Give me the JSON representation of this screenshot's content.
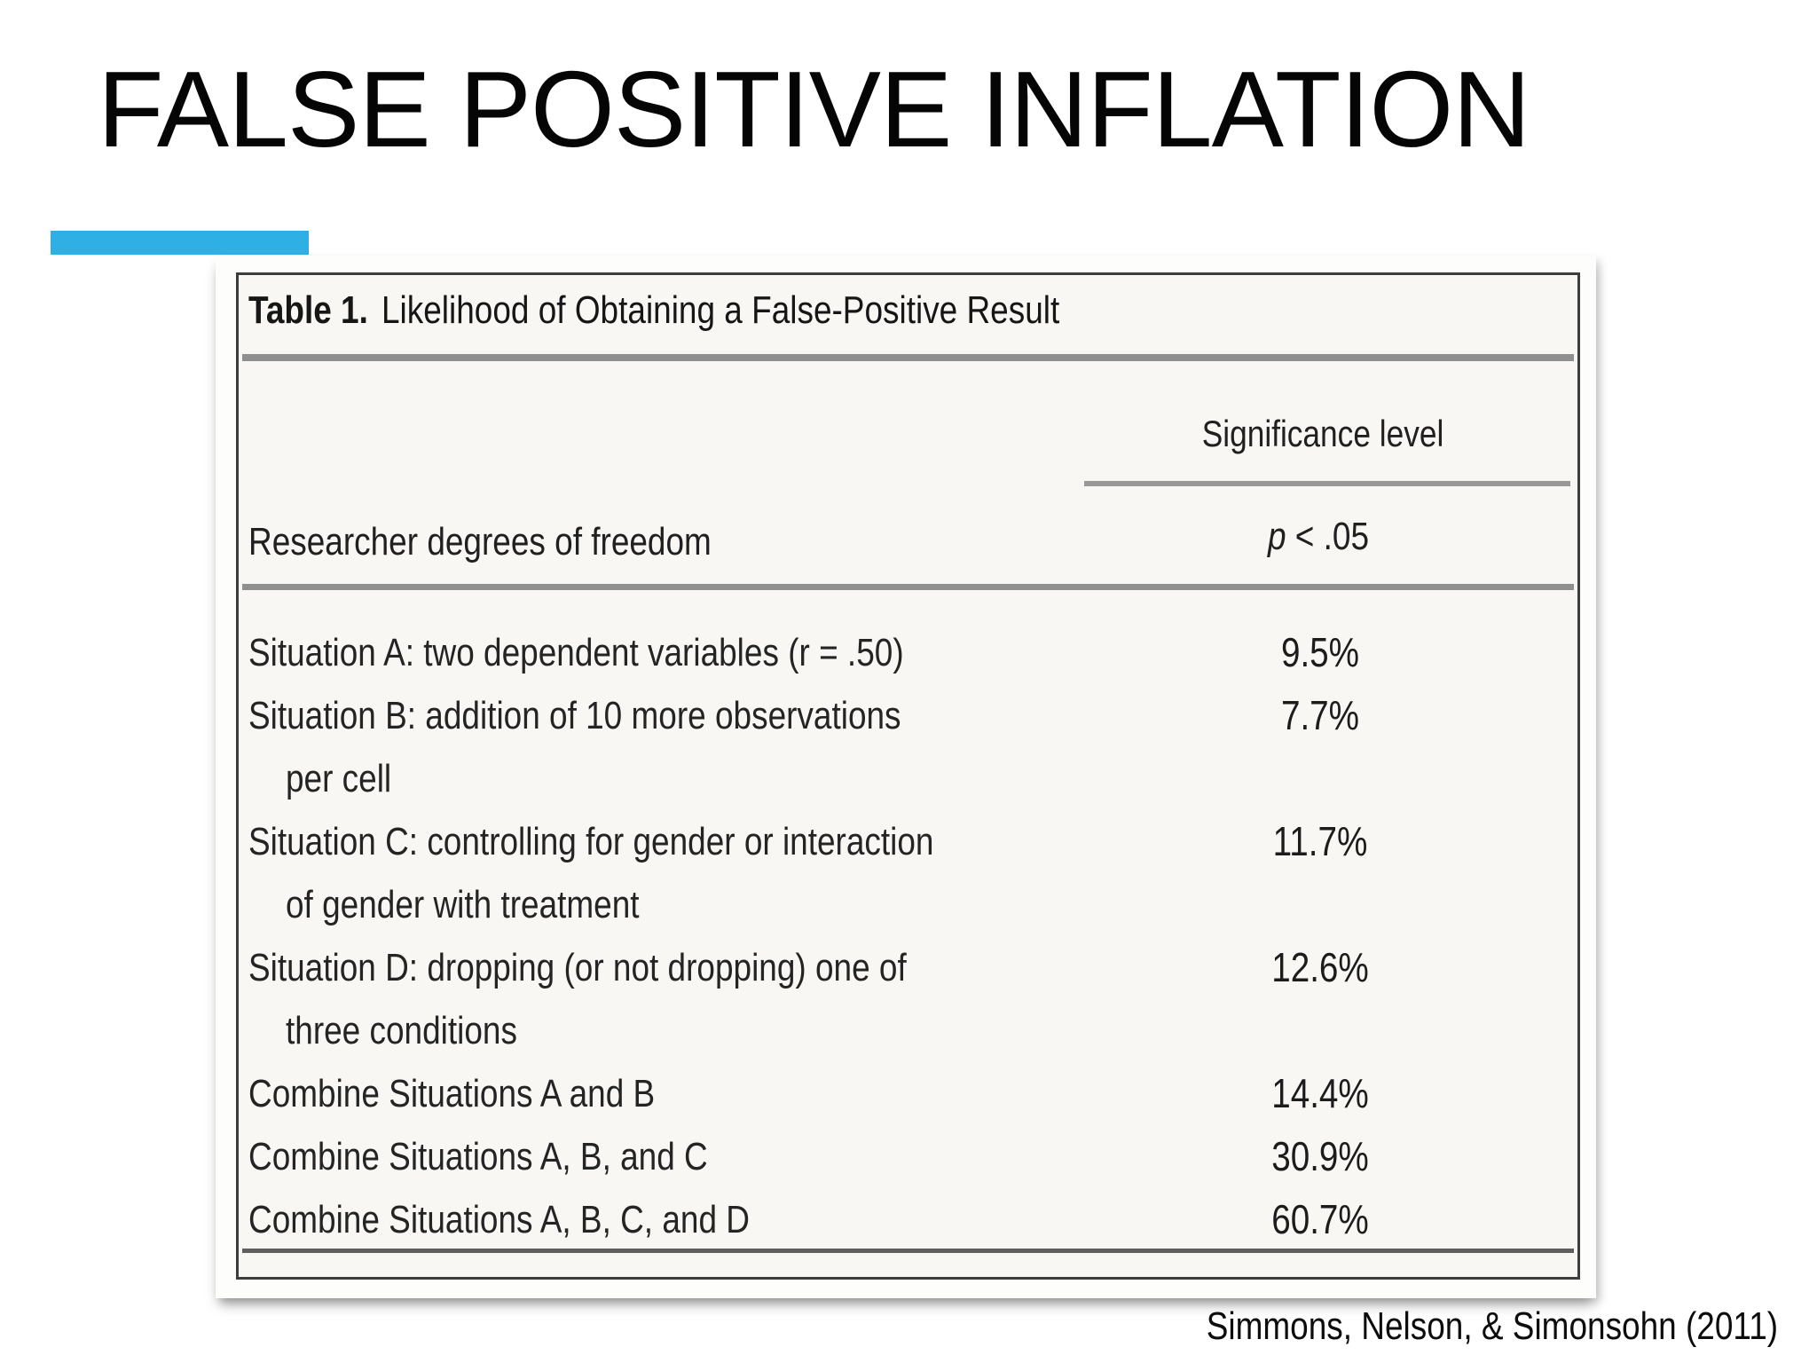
{
  "slide": {
    "title": "FALSE POSITIVE INFLATION",
    "accent_color": "#2FB0E4",
    "citation": "Simmons, Nelson, & Simonsohn (2011)"
  },
  "table": {
    "caption_label": "Table 1.",
    "caption_text": "Likelihood of Obtaining a False-Positive Result",
    "significance_header": "Significance level",
    "p_header_italic": "p",
    "p_header_rest": " < .05",
    "row_group_header": "Researcher degrees of freedom",
    "rows": [
      {
        "lines": [
          "Situation A: two dependent variables (r = .50)"
        ],
        "value": "9.5%"
      },
      {
        "lines": [
          "Situation B: addition of 10 more observations",
          "per cell"
        ],
        "value": "7.7%"
      },
      {
        "lines": [
          "Situation C: controlling for gender or interaction",
          "of gender with treatment"
        ],
        "value": "11.7%"
      },
      {
        "lines": [
          "Situation D: dropping (or not dropping) one of",
          "three conditions"
        ],
        "value": "12.6%"
      },
      {
        "lines": [
          "Combine Situations A and B"
        ],
        "value": "14.4%"
      },
      {
        "lines": [
          "Combine Situations A, B, and C"
        ],
        "value": "30.9%"
      },
      {
        "lines": [
          "Combine Situations A, B, C, and D"
        ],
        "value": "60.7%"
      }
    ]
  }
}
